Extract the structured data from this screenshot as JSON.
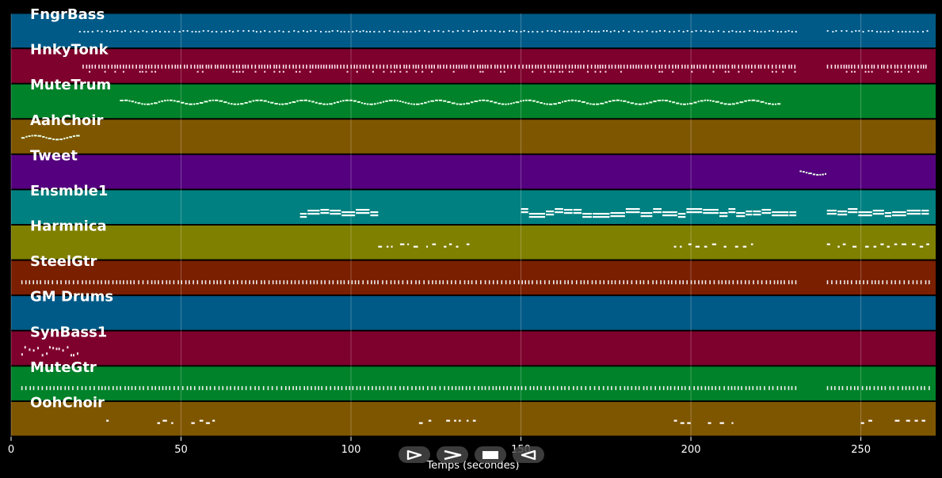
{
  "chart_data": {
    "type": "piano-roll",
    "xlabel": "Temps (secondes)",
    "xlim": [
      0,
      272
    ],
    "xticks": [
      0,
      50,
      100,
      150,
      200,
      250
    ],
    "grid": true,
    "tracks": [
      {
        "name": "FngrBass",
        "color": "#005a87",
        "segments": [
          [
            20,
            231
          ],
          [
            240,
            270
          ]
        ],
        "style": "dots"
      },
      {
        "name": "HnkyTonk",
        "color": "#7e002c",
        "segments": [
          [
            21,
            231
          ],
          [
            240,
            270
          ]
        ],
        "style": "dense"
      },
      {
        "name": "MuteTrum",
        "color": "#00822a",
        "segments": [
          [
            32,
            226
          ]
        ],
        "style": "wavy"
      },
      {
        "name": "AahChoir",
        "color": "#7f5600",
        "segments": [
          [
            3,
            20
          ]
        ],
        "style": "wavy"
      },
      {
        "name": "Tweet",
        "color": "#55007f",
        "segments": [
          [
            232,
            240
          ]
        ],
        "style": "wavy"
      },
      {
        "name": "Ensmble1",
        "color": "#008080",
        "segments": [
          [
            85,
            108
          ],
          [
            150,
            231
          ],
          [
            240,
            270
          ]
        ],
        "style": "blocks"
      },
      {
        "name": "Harmnica",
        "color": "#7f7f00",
        "segments": [
          [
            108,
            135
          ],
          [
            195,
            218
          ],
          [
            240,
            270
          ]
        ],
        "style": "sparse"
      },
      {
        "name": "SteelGtr",
        "color": "#7a1f00",
        "segments": [
          [
            3,
            231
          ],
          [
            240,
            270
          ]
        ],
        "style": "ticks"
      },
      {
        "name": "GM Drums",
        "color": "#005a87",
        "segments": [],
        "style": "none"
      },
      {
        "name": "SynBass1",
        "color": "#7e002c",
        "segments": [
          [
            3,
            20
          ]
        ],
        "style": "bass"
      },
      {
        "name": "MuteGtr",
        "color": "#00822a",
        "segments": [
          [
            3,
            231
          ],
          [
            240,
            270
          ]
        ],
        "style": "ticks"
      },
      {
        "name": "OohChoir",
        "color": "#7f5600",
        "segments": [
          [
            28,
            30
          ],
          [
            43,
            48
          ],
          [
            53,
            61
          ],
          [
            120,
            124
          ],
          [
            128,
            137
          ],
          [
            195,
            199
          ],
          [
            205,
            213
          ],
          [
            250,
            254
          ],
          [
            260,
            270
          ]
        ],
        "style": "sparse"
      }
    ]
  },
  "controls": [
    {
      "name": "play-icon"
    },
    {
      "name": "fast-forward-icon"
    },
    {
      "name": "stop-icon"
    },
    {
      "name": "rewind-icon"
    }
  ]
}
